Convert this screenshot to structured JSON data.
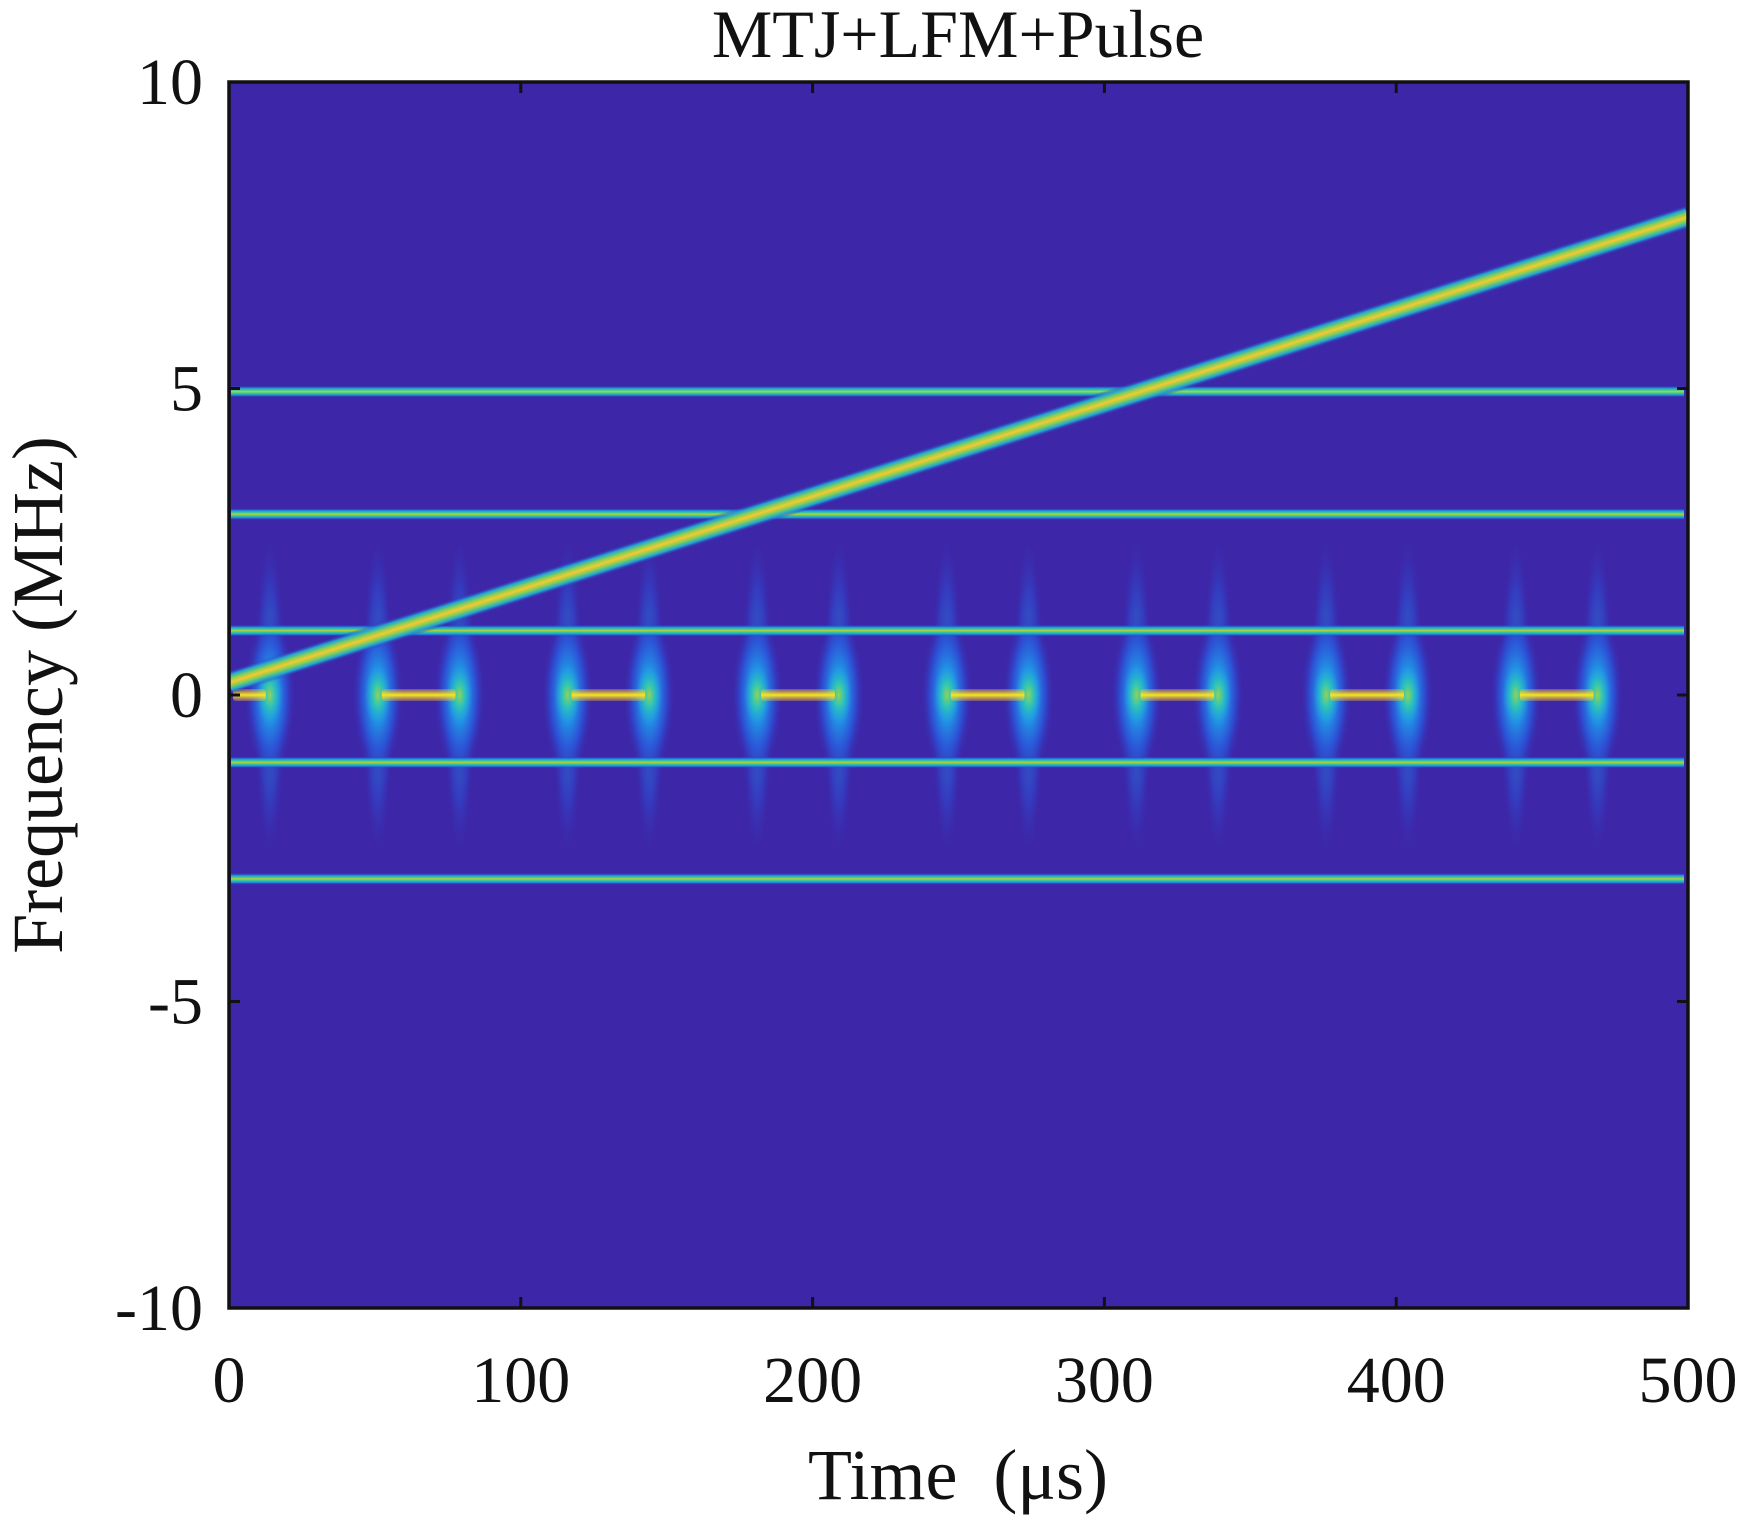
{
  "chart_data": {
    "type": "heatmap",
    "title": "MTJ+LFM+Pulse",
    "xlabel": "Time  (μs)",
    "ylabel": "Frequency (MHz)",
    "xlim": [
      0,
      500
    ],
    "ylim": [
      -10,
      10
    ],
    "xticks": [
      "0",
      "100",
      "200",
      "300",
      "400",
      "500"
    ],
    "yticks": [
      "10",
      "5",
      "0",
      "-5",
      "-10"
    ],
    "xtick_values": [
      0,
      100,
      200,
      300,
      400,
      500
    ],
    "ytick_values": [
      10,
      5,
      0,
      -5,
      -10
    ],
    "grid": false,
    "colormap": [
      "#3d26a8",
      "#1c6fe9",
      "#19b7c8",
      "#54d28f",
      "#b7c62f",
      "#f5bb32",
      "#f6e21a"
    ],
    "background_color": "#3d26a8",
    "mtj_tones_mhz": [
      4.95,
      2.95,
      1.05,
      -1.1,
      -3.0
    ],
    "lfm": {
      "f_start_mhz": 0.2,
      "f_end_mhz": 7.8,
      "t_start_us": 0,
      "t_end_us": 500
    },
    "pulse": {
      "frequency_mhz": 0,
      "segments_us": [
        [
          0,
          14
        ],
        [
          51,
          79
        ],
        [
          116,
          144
        ],
        [
          181,
          209
        ],
        [
          246,
          274
        ],
        [
          311,
          339
        ],
        [
          376,
          404
        ],
        [
          441,
          469
        ]
      ]
    }
  }
}
